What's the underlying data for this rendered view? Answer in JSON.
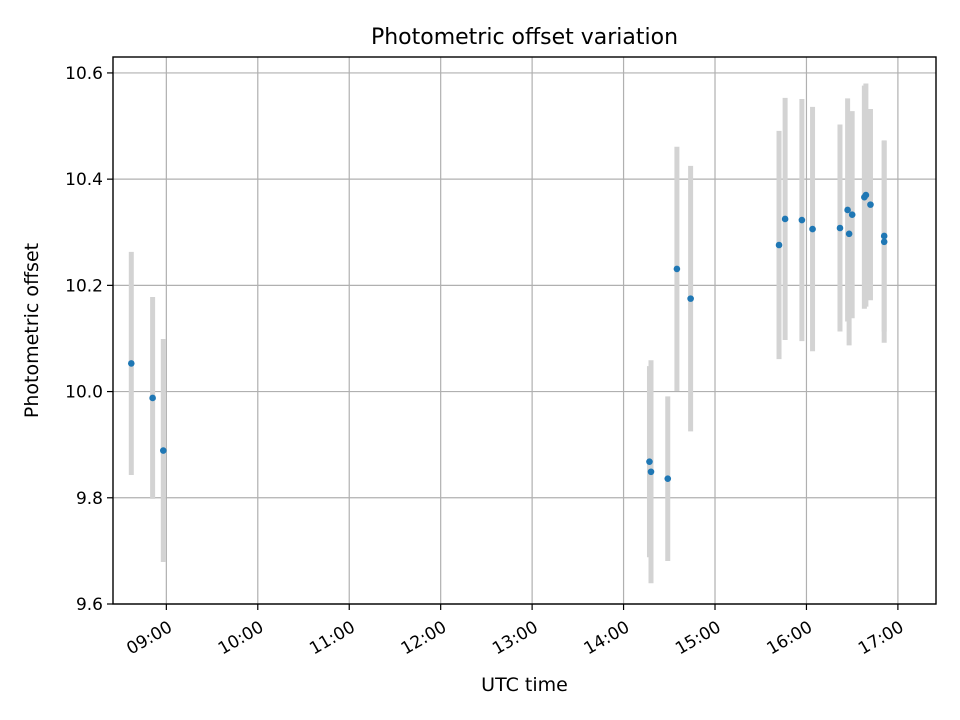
{
  "chart_data": {
    "type": "scatter",
    "title": "Photometric offset variation",
    "xlabel": "UTC time",
    "ylabel": "Photometric offset",
    "xlim": [
      "08:25",
      "17:25"
    ],
    "ylim": [
      9.6,
      10.63
    ],
    "x_ticks": [
      "09:00",
      "10:00",
      "11:00",
      "12:00",
      "13:00",
      "14:00",
      "15:00",
      "16:00",
      "17:00"
    ],
    "y_ticks": [
      "9.6",
      "9.8",
      "10.0",
      "10.2",
      "10.4",
      "10.6"
    ],
    "grid": true,
    "colors": {
      "point": "#1f77b4",
      "errorbar": "#d3d3d3"
    },
    "series": [
      {
        "points": [
          {
            "t": "08:37",
            "y": 10.053,
            "err": 0.21
          },
          {
            "t": "08:51",
            "y": 9.988,
            "err": 0.19
          },
          {
            "t": "08:58",
            "y": 9.889,
            "err": 0.21
          },
          {
            "t": "14:17",
            "y": 9.868,
            "err": 0.18
          },
          {
            "t": "14:18",
            "y": 9.849,
            "err": 0.21
          },
          {
            "t": "14:29",
            "y": 9.836,
            "err": 0.155
          },
          {
            "t": "14:35",
            "y": 10.231,
            "err": 0.23
          },
          {
            "t": "14:44",
            "y": 10.175,
            "err": 0.25
          },
          {
            "t": "15:42",
            "y": 10.276,
            "err": 0.215
          },
          {
            "t": "15:46",
            "y": 10.325,
            "err": 0.228
          },
          {
            "t": "15:57",
            "y": 10.323,
            "err": 0.228
          },
          {
            "t": "16:04",
            "y": 10.306,
            "err": 0.23
          },
          {
            "t": "16:22",
            "y": 10.308,
            "err": 0.195
          },
          {
            "t": "16:27",
            "y": 10.342,
            "err": 0.21
          },
          {
            "t": "16:28",
            "y": 10.297,
            "err": 0.21
          },
          {
            "t": "16:30",
            "y": 10.333,
            "err": 0.195
          },
          {
            "t": "16:38",
            "y": 10.366,
            "err": 0.21
          },
          {
            "t": "16:39",
            "y": 10.37,
            "err": 0.21
          },
          {
            "t": "16:42",
            "y": 10.352,
            "err": 0.18
          },
          {
            "t": "16:51",
            "y": 10.282,
            "err": 0.19
          },
          {
            "t": "16:51",
            "y": 10.293,
            "err": 0.18
          }
        ]
      }
    ]
  }
}
